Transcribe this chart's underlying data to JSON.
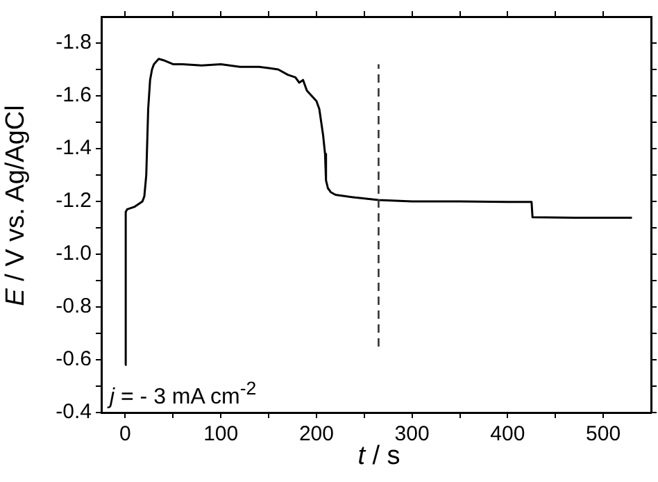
{
  "chart_data": {
    "type": "line",
    "xlabel": "t / s",
    "ylabel": "E / V vs. Ag/AgCl",
    "annotations": [
      "j = - 3 mA cm$^{-2}$"
    ],
    "x": [
      0,
      0.5,
      2,
      10,
      18,
      20,
      22,
      24,
      26,
      28,
      30,
      35,
      40,
      50,
      60,
      80,
      100,
      120,
      140,
      150,
      160,
      170,
      178,
      182,
      186,
      190,
      195,
      200,
      203,
      205,
      207,
      209,
      210,
      212,
      215,
      220,
      240,
      265,
      300,
      350,
      400,
      425,
      426,
      470,
      530
    ],
    "series": [
      {
        "color": "#000000",
        "values": [
          -0.58,
          -1.16,
          -1.17,
          -1.18,
          -1.2,
          -1.22,
          -1.3,
          -1.55,
          -1.66,
          -1.7,
          -1.72,
          -1.74,
          -1.735,
          -1.72,
          -1.72,
          -1.715,
          -1.72,
          -1.71,
          -1.71,
          -1.705,
          -1.7,
          -1.68,
          -1.67,
          -1.65,
          -1.66,
          -1.62,
          -1.6,
          -1.58,
          -1.55,
          -1.5,
          -1.45,
          -1.38,
          -1.28,
          -1.25,
          -1.235,
          -1.225,
          -1.215,
          -1.205,
          -1.2,
          -1.2,
          -1.198,
          -1.198,
          -1.14,
          -1.138,
          -1.138
        ]
      }
    ],
    "xlim": [
      -25,
      550
    ],
    "xticks": [
      0,
      {
        "value": 50,
        "label": null
      },
      100,
      {
        "value": 150,
        "label": null
      },
      200,
      {
        "value": 250,
        "label": null
      },
      300,
      {
        "value": 350,
        "label": null
      },
      400,
      {
        "value": 450,
        "label": null
      },
      500
    ],
    "ylim": [
      -0.4,
      -1.9
    ],
    "yticks": [
      -0.4,
      {
        "value": -0.5,
        "label": null
      },
      -0.6,
      {
        "value": -0.7,
        "label": null
      },
      -0.8,
      {
        "value": -0.9,
        "label": null
      },
      {
        "value": -1.0,
        "label": "-1.0"
      },
      {
        "value": -1.1,
        "label": null
      },
      -1.2,
      {
        "value": -1.3,
        "label": null
      },
      -1.4,
      {
        "value": -1.5,
        "label": null
      },
      -1.6,
      {
        "value": -1.7,
        "label": null
      },
      -1.8
    ],
    "ref_lines": [
      {
        "axis": "x",
        "value": 265,
        "line_style": "dashed",
        "color": "#333333"
      }
    ],
    "grid": false,
    "legend": false,
    "marker": "none",
    "line_style": "solid"
  }
}
